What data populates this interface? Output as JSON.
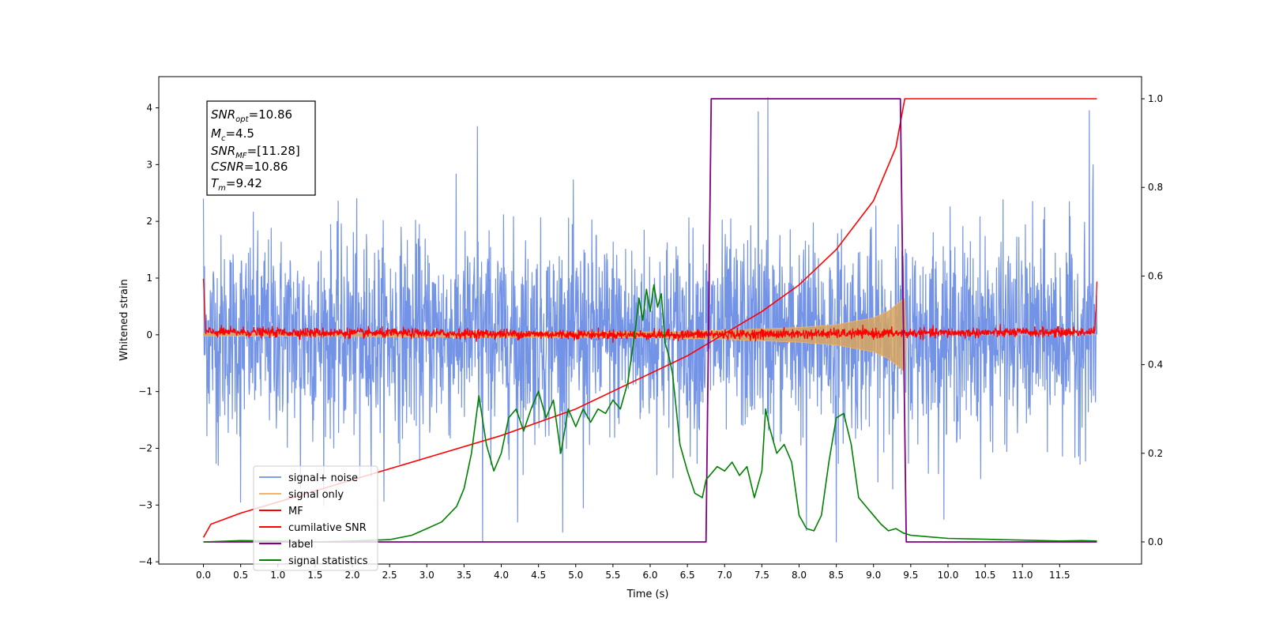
{
  "chart_data": {
    "type": "line",
    "xlabel": "Time (s)",
    "ylabel": "Whitened strain",
    "xlim": [
      -0.6,
      12.6
    ],
    "ylim": [
      -4.04,
      4.55
    ],
    "y2lim": [
      -0.05,
      1.05
    ],
    "x_ticks": [
      "0.0",
      "0.5",
      "1.0",
      "1.5",
      "2.0",
      "2.5",
      "3.0",
      "3.5",
      "4.0",
      "4.5",
      "5.0",
      "5.5",
      "6.0",
      "6.5",
      "7.0",
      "7.5",
      "8.0",
      "8.5",
      "9.0",
      "9.5",
      "10.0",
      "10.5",
      "11.0",
      "11.5"
    ],
    "y_ticks": [
      "−4",
      "−3",
      "−2",
      "−1",
      "0",
      "1",
      "2",
      "3",
      "4"
    ],
    "y2_ticks": [
      "0.0",
      "0.2",
      "0.4",
      "0.6",
      "0.8",
      "1.0"
    ],
    "legend": {
      "placement": "lower-left",
      "entries": [
        "signal+ noise",
        "signal only",
        "MF",
        "cumilative SNR",
        "label",
        "signal statistics"
      ]
    },
    "annotation": {
      "snr_opt": {
        "base": "SNR",
        "sub": "opt",
        "value": "=10.86"
      },
      "mc": {
        "base": "M",
        "sub": "c",
        "value": "=4.5"
      },
      "snr_mf": {
        "base": "SNR",
        "sub": "MF",
        "value": "=[11.28]"
      },
      "csnr": {
        "base": "CSNR",
        "value": "=10.86"
      },
      "tm": {
        "base": "T",
        "sub": "m",
        "value": "=9.42"
      }
    },
    "series": [
      {
        "name": "signal+ noise",
        "color": "#7393e6",
        "axis": "left",
        "x_range": [
          0.0,
          12.0
        ],
        "envelope_typical": [
          -1.6,
          1.6
        ],
        "extremes": [
          [
            0.0,
            2.4
          ],
          [
            0.2,
            -2.3
          ],
          [
            0.5,
            -2.95
          ],
          [
            1.3,
            -2.7
          ],
          [
            2.1,
            -2.55
          ],
          [
            3.68,
            3.67
          ],
          [
            3.75,
            -3.65
          ],
          [
            4.22,
            -3.3
          ],
          [
            5.1,
            -3.05
          ],
          [
            7.45,
            3.93
          ],
          [
            7.58,
            4.18
          ],
          [
            8.1,
            -3.45
          ],
          [
            8.5,
            -3.65
          ],
          [
            11.9,
            3.95
          ],
          [
            11.95,
            3.0
          ]
        ]
      },
      {
        "name": "signal only",
        "color": "#f5b46a",
        "axis": "left",
        "envelope_amplitude": [
          [
            0.0,
            0.02
          ],
          [
            6.0,
            0.05
          ],
          [
            7.0,
            0.08
          ],
          [
            8.0,
            0.13
          ],
          [
            8.5,
            0.18
          ],
          [
            9.0,
            0.3
          ],
          [
            9.2,
            0.42
          ],
          [
            9.42,
            0.65
          ],
          [
            9.43,
            0.0
          ],
          [
            12.0,
            0.0
          ]
        ]
      },
      {
        "name": "MF",
        "color": "#ff0000",
        "axis": "left",
        "x": [
          0.0,
          0.01,
          0.03,
          6.0,
          11.97,
          11.99,
          12.0
        ],
        "y": [
          1.0,
          0.6,
          0.05,
          0.0,
          0.05,
          0.5,
          0.88
        ],
        "noise_amplitude": 0.09
      },
      {
        "name": "cumilative SNR",
        "color": "#ff0000",
        "axis": "right",
        "x": [
          0.0,
          0.1,
          0.5,
          1.0,
          2.0,
          3.0,
          4.0,
          4.5,
          5.0,
          5.5,
          6.0,
          6.5,
          7.0,
          7.5,
          8.0,
          8.5,
          9.0,
          9.3,
          9.42,
          12.0
        ],
        "y": [
          0.01,
          0.04,
          0.065,
          0.09,
          0.14,
          0.19,
          0.24,
          0.27,
          0.3,
          0.34,
          0.38,
          0.42,
          0.47,
          0.52,
          0.58,
          0.66,
          0.77,
          0.89,
          1.0,
          1.0
        ]
      },
      {
        "name": "label",
        "color": "#800080",
        "axis": "right",
        "x": [
          0.0,
          6.75,
          6.82,
          9.36,
          9.44,
          12.0
        ],
        "y": [
          0.0,
          0.0,
          1.0,
          1.0,
          0.0,
          0.0
        ]
      },
      {
        "name": "signal statistics",
        "color": "#008000",
        "axis": "right",
        "x": [
          0.0,
          0.5,
          1.0,
          1.5,
          2.0,
          2.5,
          2.8,
          3.0,
          3.2,
          3.4,
          3.5,
          3.6,
          3.7,
          3.8,
          3.9,
          4.0,
          4.1,
          4.2,
          4.3,
          4.4,
          4.5,
          4.6,
          4.7,
          4.8,
          4.9,
          5.0,
          5.1,
          5.2,
          5.3,
          5.4,
          5.5,
          5.6,
          5.7,
          5.8,
          5.85,
          5.9,
          5.95,
          6.0,
          6.05,
          6.1,
          6.15,
          6.2,
          6.25,
          6.3,
          6.4,
          6.5,
          6.6,
          6.7,
          6.75,
          6.8,
          6.9,
          7.0,
          7.1,
          7.2,
          7.3,
          7.4,
          7.5,
          7.55,
          7.6,
          7.7,
          7.8,
          7.9,
          8.0,
          8.1,
          8.2,
          8.3,
          8.4,
          8.5,
          8.6,
          8.7,
          8.8,
          8.9,
          9.0,
          9.1,
          9.2,
          9.3,
          9.4,
          9.5,
          9.7,
          10.0,
          10.5,
          11.0,
          11.5,
          11.8,
          12.0
        ],
        "y": [
          0.0,
          0.003,
          0.002,
          0.0,
          0.002,
          0.005,
          0.015,
          0.03,
          0.045,
          0.08,
          0.12,
          0.2,
          0.33,
          0.22,
          0.16,
          0.2,
          0.28,
          0.3,
          0.25,
          0.3,
          0.34,
          0.28,
          0.32,
          0.2,
          0.3,
          0.26,
          0.3,
          0.27,
          0.3,
          0.29,
          0.32,
          0.3,
          0.36,
          0.48,
          0.55,
          0.5,
          0.57,
          0.52,
          0.58,
          0.53,
          0.56,
          0.45,
          0.42,
          0.38,
          0.22,
          0.16,
          0.11,
          0.1,
          0.14,
          0.15,
          0.17,
          0.16,
          0.18,
          0.15,
          0.17,
          0.1,
          0.16,
          0.3,
          0.26,
          0.2,
          0.22,
          0.18,
          0.06,
          0.03,
          0.025,
          0.06,
          0.18,
          0.28,
          0.29,
          0.22,
          0.1,
          0.08,
          0.06,
          0.04,
          0.025,
          0.03,
          0.02,
          0.015,
          0.012,
          0.008,
          0.006,
          0.004,
          0.002,
          0.003,
          0.002
        ]
      }
    ]
  }
}
